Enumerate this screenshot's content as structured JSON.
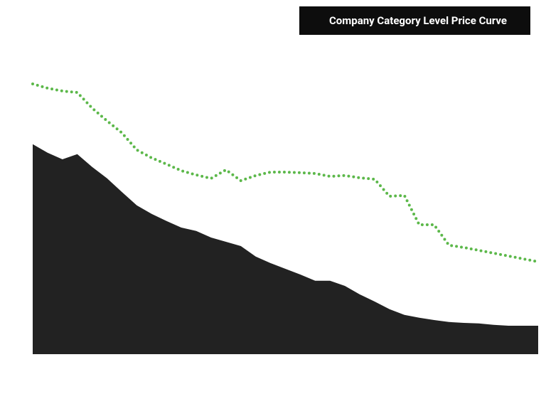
{
  "chart_data": {
    "type": "area-line",
    "title": "Company Category Level Price Curve",
    "x": [
      0,
      1,
      2,
      3,
      4,
      5,
      6,
      7,
      8,
      9,
      10,
      11,
      12,
      13,
      14,
      15,
      16,
      17,
      18,
      19,
      20,
      21,
      22,
      23,
      24,
      25,
      26,
      27,
      28,
      29,
      30,
      31,
      32,
      33,
      34
    ],
    "xlim": [
      0,
      34
    ],
    "ylim": [
      0,
      100
    ],
    "series": [
      {
        "kind": "area",
        "color": "#222222",
        "values": [
          73.8,
          70.8,
          68.5,
          70.3,
          65.8,
          61.8,
          57,
          52.3,
          49.3,
          46.8,
          44.5,
          43.3,
          41,
          39.5,
          38,
          34.3,
          32,
          30,
          28,
          25.8,
          25.8,
          24,
          21,
          18.5,
          15.8,
          13.8,
          12.8,
          12,
          11.3,
          11,
          10.8,
          10.3,
          10,
          10,
          10
        ]
      },
      {
        "kind": "line",
        "color": "#5cb84a",
        "values": [
          95,
          93.5,
          92.5,
          92,
          86.5,
          82,
          77.8,
          71.8,
          69,
          66.8,
          64.5,
          63,
          61.8,
          64.8,
          61,
          62.8,
          64,
          64,
          63.8,
          63.5,
          62.5,
          62.8,
          62,
          61.5,
          55.5,
          55.8,
          45.5,
          45.5,
          38.3,
          37.5,
          36.5,
          35.5,
          34.5,
          33.5,
          32.5
        ]
      }
    ]
  }
}
